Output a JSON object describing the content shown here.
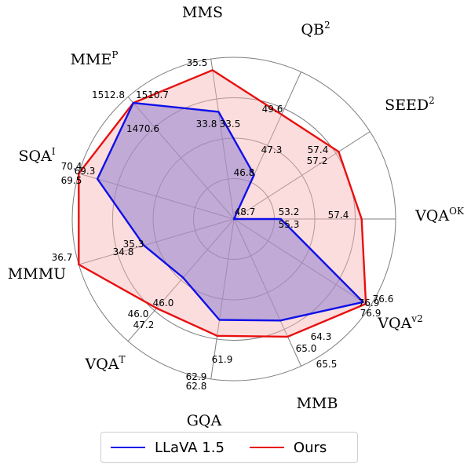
{
  "chart_data": {
    "type": "radar",
    "title": "",
    "categories": [
      {
        "base": "VQA",
        "sup": "OK"
      },
      {
        "base": "SEED",
        "sup": "2"
      },
      {
        "base": "QB",
        "sup": "2"
      },
      {
        "base": "MMS",
        "sup": ""
      },
      {
        "base": "MME",
        "sup": "P"
      },
      {
        "base": "SQA",
        "sup": "I"
      },
      {
        "base": "MMMU",
        "sup": ""
      },
      {
        "base": "VQA",
        "sup": "T"
      },
      {
        "base": "GQA",
        "sup": ""
      },
      {
        "base": "MMB",
        "sup": ""
      },
      {
        "base": "VQA",
        "sup": "v2"
      }
    ],
    "series": [
      {
        "name": "LLaVA 1.5",
        "color": "#1010e8",
        "fill": "#8f7fd0",
        "values": [
          53.2,
          57.2,
          47.3,
          33.8,
          1510.7,
          69.5,
          34.8,
          46.0,
          61.9,
          64.3,
          76.9
        ],
        "r_fraction": [
          0.29,
          0.0,
          0.3,
          0.67,
          0.95,
          0.88,
          0.58,
          0.48,
          0.63,
          0.69,
          0.95
        ]
      },
      {
        "name": "Ours",
        "color": "#e81010",
        "fill": "#f8b4b4",
        "values": [
          55.3,
          57.4,
          49.6,
          35.5,
          1512.8,
          70.4,
          36.7,
          47.2,
          62.8,
          65.5,
          76.6
        ],
        "r_fraction": [
          0.79,
          0.77,
          0.71,
          0.93,
          0.95,
          1.0,
          1.0,
          0.73,
          0.73,
          0.8,
          0.97
        ]
      }
    ],
    "value_labels": [
      "55.3",
      "53.2",
      "57.4",
      "48.7",
      "57.4",
      "57.2",
      "47.3",
      "46.8",
      "49.6",
      "33.8",
      "33.5",
      "35.5",
      "1470.6",
      "1512.8",
      "1510.7",
      "70.4",
      "69.3",
      "69.5",
      "35.3",
      "34.8",
      "36.7",
      "46.0",
      "46.0",
      "47.2",
      "61.9",
      "62.9",
      "62.8",
      "65.0",
      "64.3",
      "65.5",
      "76.9",
      "76.6",
      "76.9"
    ],
    "rings": 4,
    "grid": true,
    "legend_position": "bottom"
  }
}
